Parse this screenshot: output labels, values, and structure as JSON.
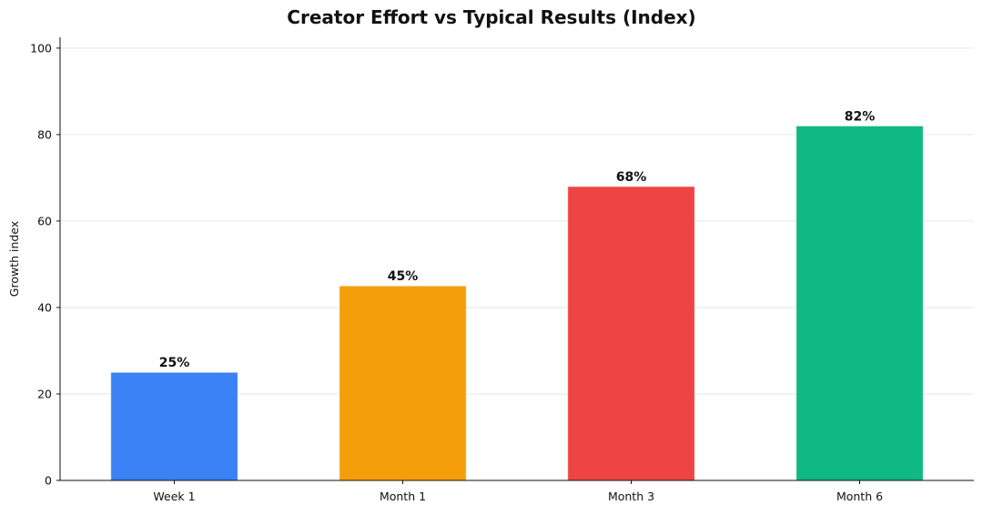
{
  "chart_data": {
    "type": "bar",
    "title": "Creator Effort vs Typical Results (Index)",
    "xlabel": "",
    "ylabel": "Growth index",
    "categories": [
      "Week 1",
      "Month 1",
      "Month 3",
      "Month 6"
    ],
    "values": [
      25,
      45,
      68,
      82
    ],
    "data_labels": [
      "25%",
      "45%",
      "68%",
      "82%"
    ],
    "colors": [
      "#3b82f6",
      "#f59e0b",
      "#ef4444",
      "#10b981"
    ],
    "ylim": [
      0,
      102.5
    ],
    "yticks": [
      0,
      20,
      40,
      60,
      80,
      100
    ],
    "grid": "y",
    "grid_color": "#e6e6e6",
    "axis_color": "#111111",
    "legend": "none"
  }
}
